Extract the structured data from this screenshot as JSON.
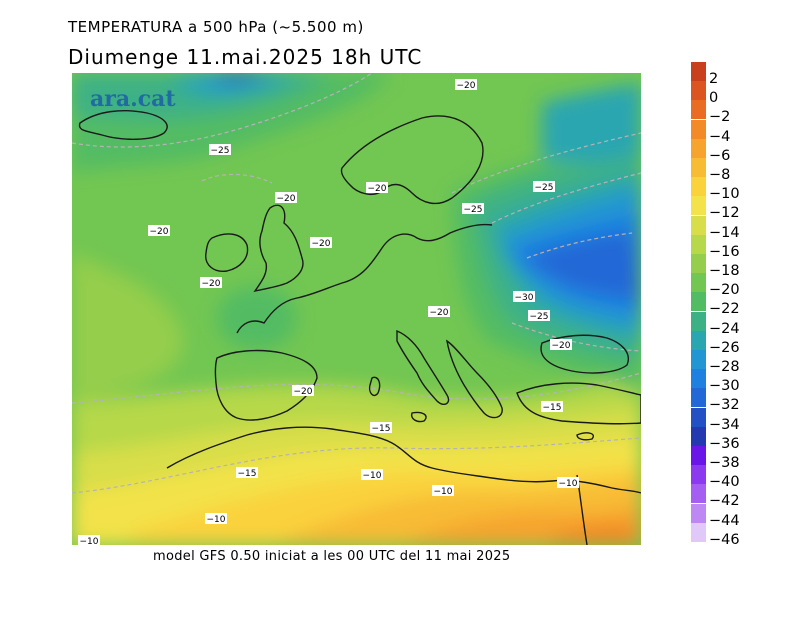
{
  "header": {
    "variable": "TEMPERATURA a 500 hPa (~5.500 m)",
    "datetime": "Diumenge  11.mai.2025  18h  UTC"
  },
  "footer": {
    "model_info": "model GFS 0.50 iniciat a les 00 UTC del 11 mai 2025"
  },
  "watermark": "ara.cat",
  "legend": {
    "unit_hint": "",
    "items": [
      {
        "label": "2",
        "color": "#c8401e"
      },
      {
        "label": "0",
        "color": "#dc5520"
      },
      {
        "label": "−2",
        "color": "#ea6c22"
      },
      {
        "label": "−4",
        "color": "#f28a28"
      },
      {
        "label": "−6",
        "color": "#f6a42e"
      },
      {
        "label": "−8",
        "color": "#f8bb34"
      },
      {
        "label": "−10",
        "color": "#fad23c"
      },
      {
        "label": "−12",
        "color": "#f3e24a"
      },
      {
        "label": "−14",
        "color": "#d8de4a"
      },
      {
        "label": "−16",
        "color": "#b6d84a"
      },
      {
        "label": "−18",
        "color": "#94ce4c"
      },
      {
        "label": "−20",
        "color": "#72c652"
      },
      {
        "label": "−22",
        "color": "#52bc64"
      },
      {
        "label": "−24",
        "color": "#3cb186"
      },
      {
        "label": "−26",
        "color": "#2aa6b0"
      },
      {
        "label": "−28",
        "color": "#2296d2"
      },
      {
        "label": "−30",
        "color": "#1f80e0"
      },
      {
        "label": "−32",
        "color": "#2268d6"
      },
      {
        "label": "−34",
        "color": "#2450c6"
      },
      {
        "label": "−36",
        "color": "#2438b0"
      },
      {
        "label": "−38",
        "color": "#6a16e8"
      },
      {
        "label": "−40",
        "color": "#8b3af0"
      },
      {
        "label": "−42",
        "color": "#a45ef2"
      },
      {
        "label": "−44",
        "color": "#be88f4"
      },
      {
        "label": "−46",
        "color": "#e0c8f8"
      }
    ]
  },
  "contour_labels": [
    {
      "text": "−20"
    },
    {
      "text": "−25"
    },
    {
      "text": "−20"
    },
    {
      "text": "−20"
    },
    {
      "text": "−20"
    },
    {
      "text": "−20"
    },
    {
      "text": "−20"
    },
    {
      "text": "−25"
    },
    {
      "text": "−25"
    },
    {
      "text": "−30"
    },
    {
      "text": "−25"
    },
    {
      "text": "−20"
    },
    {
      "text": "−20"
    },
    {
      "text": "−20"
    },
    {
      "text": "−15"
    },
    {
      "text": "−15"
    },
    {
      "text": "−15"
    },
    {
      "text": "−10"
    },
    {
      "text": "−10"
    },
    {
      "text": "−10"
    },
    {
      "text": "−10"
    },
    {
      "text": "−10"
    }
  ]
}
